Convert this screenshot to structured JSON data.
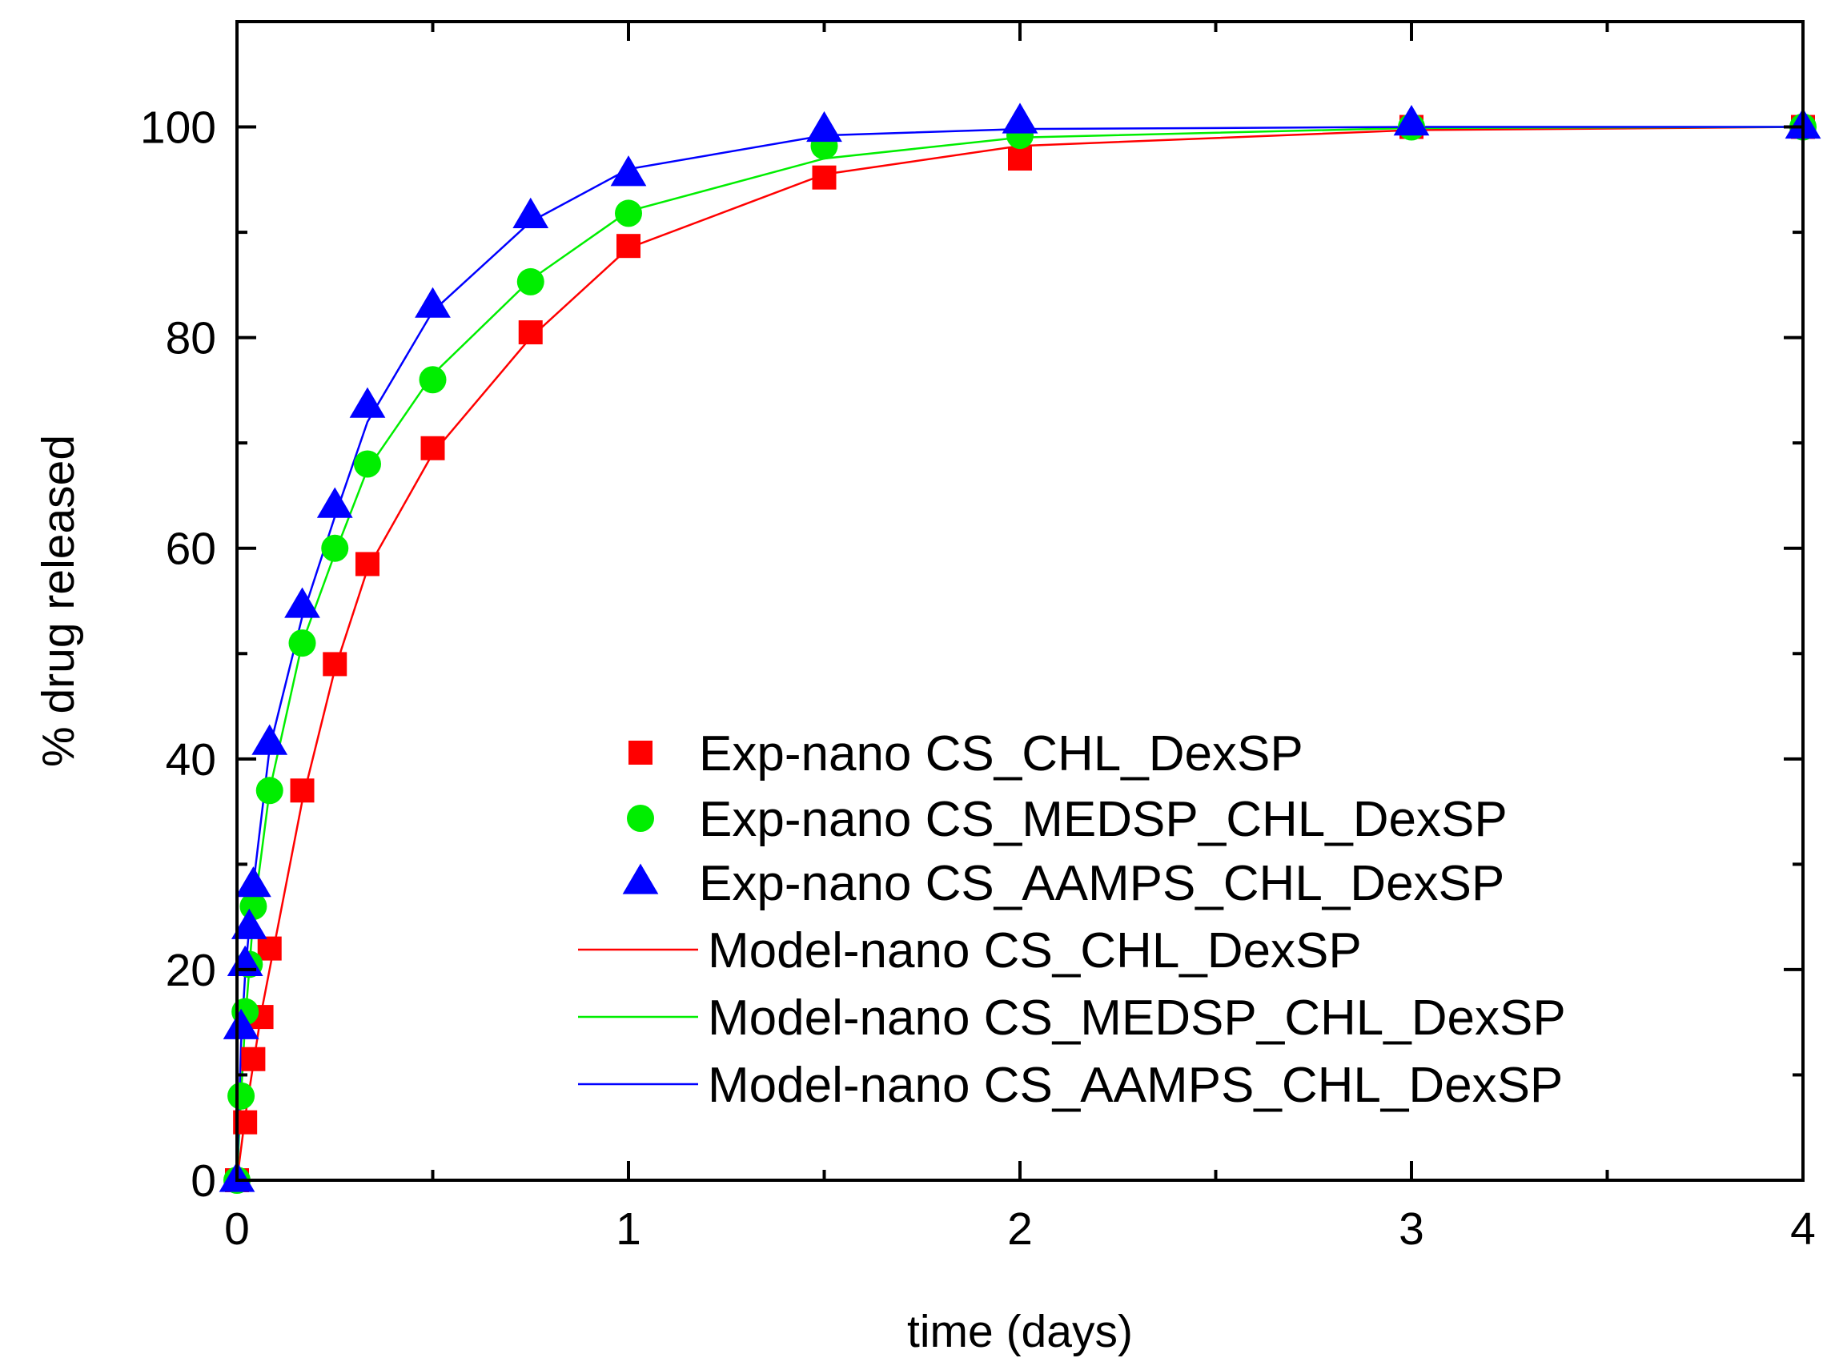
{
  "chart_data": {
    "type": "scatter",
    "title": "",
    "xlabel": "time (days)",
    "ylabel": "% drug released",
    "xlim": [
      0,
      4
    ],
    "ylim": [
      0,
      110
    ],
    "x_ticks": [
      0,
      1,
      2,
      3,
      4
    ],
    "x_tick_labels": [
      "0",
      "1",
      "2",
      "3",
      "4"
    ],
    "y_ticks": [
      0,
      20,
      40,
      60,
      80,
      100
    ],
    "y_tick_labels": [
      "0",
      "20",
      "40",
      "60",
      "80",
      "100"
    ],
    "grid": false,
    "legend_position": "center-right",
    "series": [
      {
        "name": "Exp-nano CS_CHL_DexSP",
        "kind": "markers",
        "marker": "square",
        "color": "#ff0000",
        "x": [
          0,
          0.0208,
          0.0417,
          0.0625,
          0.0833,
          0.1667,
          0.25,
          0.3333,
          0.5,
          0.75,
          1,
          1.5,
          2,
          3,
          4
        ],
        "y": [
          0,
          5.5,
          11.5,
          15.5,
          22,
          37,
          49,
          58.5,
          69.5,
          80.5,
          88.7,
          95.2,
          97,
          100,
          100
        ]
      },
      {
        "name": "Exp-nano CS_MEDSP_CHL_DexSP",
        "kind": "markers",
        "marker": "circle",
        "color": "#00ee00",
        "x": [
          0,
          0.0104,
          0.0208,
          0.0313,
          0.0417,
          0.0833,
          0.1667,
          0.25,
          0.3333,
          0.5,
          0.75,
          1,
          1.5,
          2,
          3,
          4
        ],
        "y": [
          0,
          8,
          16,
          20.5,
          26,
          37,
          51,
          60,
          68,
          76,
          85.3,
          91.8,
          98.2,
          99.2,
          100,
          100
        ]
      },
      {
        "name": "Exp-nano CS_AAMPS_CHL_DexSP",
        "kind": "markers",
        "marker": "triangle",
        "color": "#0000ff",
        "x": [
          0,
          0.0104,
          0.0208,
          0.0313,
          0.0417,
          0.0833,
          0.1667,
          0.25,
          0.3333,
          0.5,
          0.75,
          1,
          1.5,
          2,
          3,
          4
        ],
        "y": [
          0,
          14.5,
          20.5,
          24,
          28,
          41.5,
          54.5,
          64,
          73.5,
          83,
          91.5,
          95.5,
          99.7,
          100.5,
          100.3,
          100
        ]
      },
      {
        "name": "Model-nano CS_CHL_DexSP",
        "kind": "line",
        "color": "#ff0000",
        "x": [
          0,
          0.0208,
          0.0417,
          0.0625,
          0.0833,
          0.1667,
          0.25,
          0.3333,
          0.5,
          0.75,
          1,
          1.5,
          2,
          3,
          4
        ],
        "y": [
          0,
          6,
          11,
          16,
          20,
          36,
          48.5,
          58,
          69,
          80,
          88.5,
          95.5,
          98.2,
          99.7,
          100
        ]
      },
      {
        "name": "Model-nano CS_MEDSP_CHL_DexSP",
        "kind": "line",
        "color": "#00ee00",
        "x": [
          0,
          0.0104,
          0.0208,
          0.0313,
          0.0417,
          0.0833,
          0.1667,
          0.25,
          0.3333,
          0.5,
          0.75,
          1,
          1.5,
          2,
          3,
          4
        ],
        "y": [
          0,
          8,
          15,
          20,
          25,
          37,
          51,
          59.5,
          67.5,
          76.5,
          85.5,
          92,
          97,
          99,
          99.9,
          100
        ]
      },
      {
        "name": "Model-nano CS_AAMPS_CHL_DexSP",
        "kind": "line",
        "color": "#0000ff",
        "x": [
          0,
          0.0104,
          0.0208,
          0.0313,
          0.0417,
          0.0833,
          0.1667,
          0.25,
          0.3333,
          0.5,
          0.75,
          1,
          1.5,
          2,
          3,
          4
        ],
        "y": [
          0,
          13,
          19.5,
          24,
          28,
          41,
          53.5,
          63,
          72,
          82.5,
          91,
          96,
          99.2,
          99.8,
          100,
          100
        ]
      }
    ]
  }
}
